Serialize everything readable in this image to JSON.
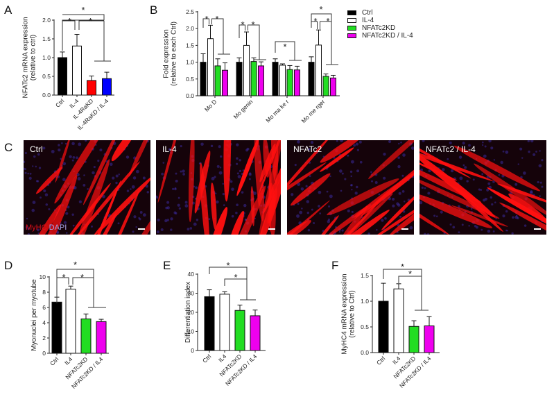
{
  "panels": {
    "A": "A",
    "B": "B",
    "C": "C",
    "D": "D",
    "E": "E",
    "F": "F"
  },
  "legend": {
    "items": [
      {
        "label": "Ctrl",
        "color": "#000000"
      },
      {
        "label": "IL-4",
        "color": "#ffffff"
      },
      {
        "label": "NFATc2KD",
        "color": "#22dd22"
      },
      {
        "label": "NFATc2KD / IL-4",
        "color": "#ee00ee"
      }
    ]
  },
  "micrographs": {
    "labels": [
      "Ctrl",
      "IL-4",
      "NFATc2",
      "NFATc2 / IL-4"
    ],
    "stain_red": "MyHC",
    "stain_blue": "DAPI"
  },
  "chart_data": [
    {
      "id": "A",
      "type": "bar",
      "title": "",
      "ylabel": "NFATc2 mRNA expression (relative to ctrl)",
      "ylabel_lines": [
        "NFATc2 mRNA expression",
        "(relative to ctrl)"
      ],
      "ylim": [
        0,
        2.0
      ],
      "yticks": [
        "0.0",
        "0.5",
        "1.0",
        "1.5",
        "2.0"
      ],
      "categories": [
        "Ctrl",
        "IL-4",
        "IL-4RaKD",
        "IL-4RaKD / IL-4"
      ],
      "values": [
        1.0,
        1.31,
        0.39,
        0.44
      ],
      "errors": [
        0.15,
        0.31,
        0.12,
        0.17
      ],
      "colors": [
        "#000000",
        "#ffffff",
        "#ff0000",
        "#0000ff"
      ],
      "significance": [
        "Ctrl vs IL-4 *",
        "IL-4 vs KD groups *",
        "Ctrl vs KD groups *"
      ]
    },
    {
      "id": "B",
      "type": "bar",
      "ylabel": "Fold expression (relative to each Ctrl)",
      "ylabel_lines": [
        "Fold expression",
        "(relative to each Ctrl)"
      ],
      "ylim": [
        0,
        2.5
      ],
      "yticks": [
        "0.0",
        "0.5",
        "1.0",
        "1.5",
        "2.0",
        "2.5"
      ],
      "categories": [
        "Mo D",
        "Mo genin",
        "Mo ma ke r",
        "Mo me rger"
      ],
      "series": [
        {
          "name": "Ctrl",
          "values": [
            1.0,
            1.0,
            1.0,
            1.0
          ],
          "errors": [
            0.25,
            0.13,
            0.1,
            0.16
          ]
        },
        {
          "name": "IL-4",
          "values": [
            1.7,
            1.5,
            0.91,
            1.51
          ],
          "errors": [
            0.4,
            0.4,
            0.04,
            0.45
          ]
        },
        {
          "name": "NFATc2KD",
          "values": [
            0.89,
            1.02,
            0.78,
            0.58
          ],
          "errors": [
            0.21,
            0.11,
            0.12,
            0.07
          ]
        },
        {
          "name": "NFATc2KD / IL-4",
          "values": [
            0.76,
            0.89,
            0.77,
            0.53
          ],
          "errors": [
            0.22,
            0.12,
            0.11,
            0.08
          ]
        }
      ],
      "legend_position": "right"
    },
    {
      "id": "D",
      "type": "bar",
      "ylabel": "Myonuclei per myotube",
      "ylim": [
        0,
        10
      ],
      "yticks": [
        "0",
        "2",
        "4",
        "6",
        "8",
        "10"
      ],
      "categories": [
        "Ctrl",
        "IL4",
        "NFATc2KD",
        "NFATc2KD / IL4"
      ],
      "values": [
        6.7,
        8.4,
        4.5,
        4.15
      ],
      "errors": [
        0.65,
        0.4,
        0.65,
        0.3
      ],
      "colors": [
        "#000000",
        "#ffffff",
        "#22dd22",
        "#ee00ee"
      ]
    },
    {
      "id": "E",
      "type": "bar",
      "ylabel": "Differentiation index",
      "ylim": [
        0,
        40
      ],
      "yticks": [
        "0",
        "10",
        "20",
        "30",
        "40"
      ],
      "categories": [
        "Ctrl",
        "IL4",
        "NFATc2KD",
        "NFATc2KD / IL4"
      ],
      "values": [
        28.2,
        29.5,
        21.0,
        18.2
      ],
      "errors": [
        3.6,
        1.3,
        2.8,
        3.0
      ],
      "colors": [
        "#000000",
        "#ffffff",
        "#22dd22",
        "#ee00ee"
      ]
    },
    {
      "id": "F",
      "type": "bar",
      "ylabel": "MyHC4 mRNA expression (relative to Ctrl)",
      "ylabel_lines": [
        "MyHC4 mRNA expression",
        "(relative to Ctrl)"
      ],
      "ylim": [
        0,
        1.5
      ],
      "yticks": [
        "0.0",
        "0.5",
        "1.0",
        "1.5"
      ],
      "categories": [
        "Ctrl",
        "IL4",
        "NFATc2KD",
        "NFATc2KD / IL4"
      ],
      "values": [
        1.0,
        1.24,
        0.51,
        0.52
      ],
      "errors": [
        0.35,
        0.1,
        0.11,
        0.18
      ],
      "colors": [
        "#000000",
        "#ffffff",
        "#22dd22",
        "#ee00ee"
      ]
    }
  ]
}
